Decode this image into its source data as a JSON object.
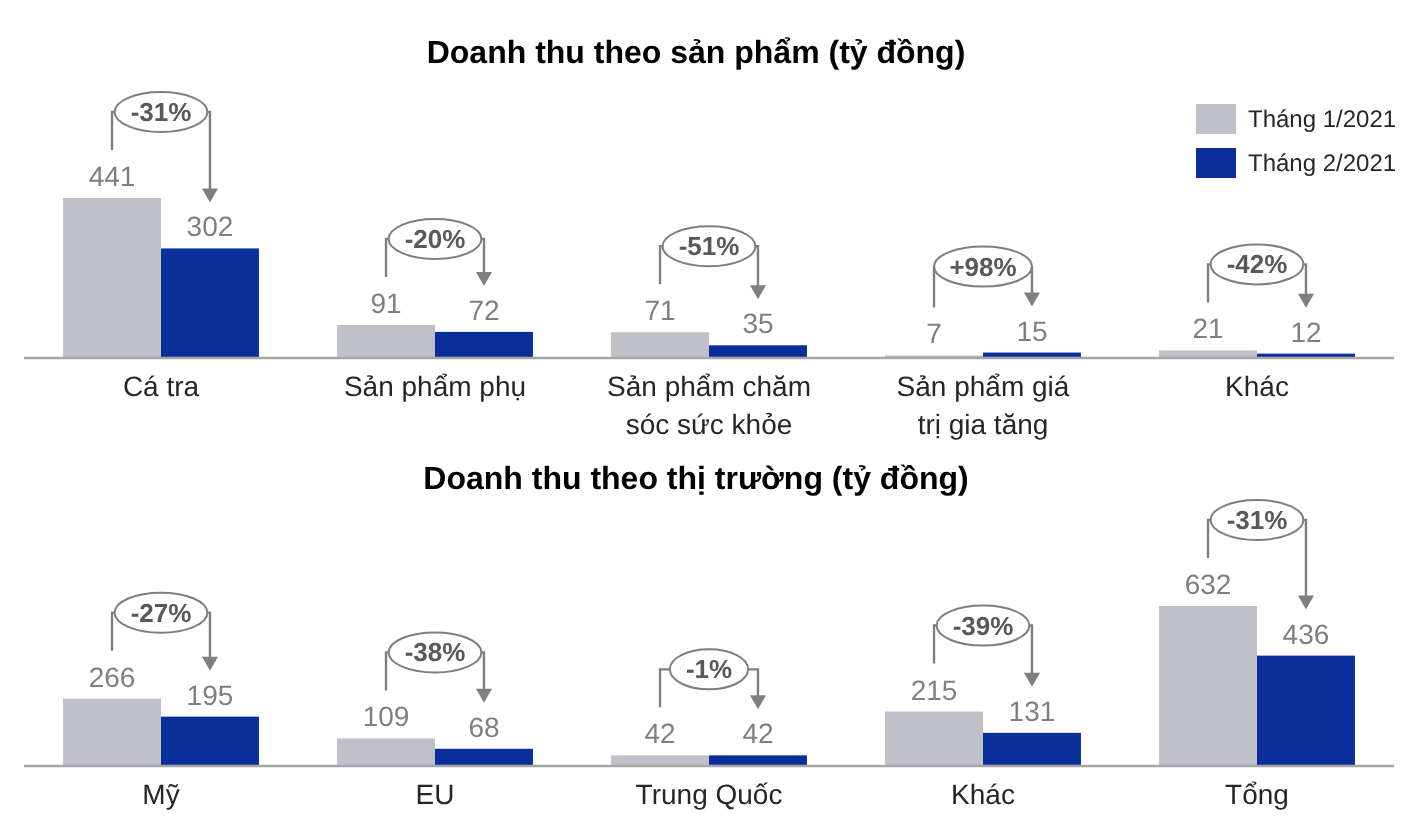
{
  "chart_data": [
    {
      "type": "bar",
      "title": "Doanh thu theo sản phẩm (tỷ đồng)",
      "categories": [
        "Cá tra",
        "Sản phẩm phụ",
        "Sản phẩm chăm sóc sức khỏe",
        "Sản phẩm giá trị gia tăng",
        "Khác"
      ],
      "series": [
        {
          "name": "Tháng 1/2021",
          "color": "#bfc0ca",
          "values": [
            441,
            91,
            71,
            7,
            21
          ]
        },
        {
          "name": "Tháng 2/2021",
          "color": "#0a2f9b",
          "values": [
            302,
            72,
            35,
            15,
            12
          ]
        }
      ],
      "data_labels": true,
      "legend": "top right",
      "tick_labels": "x",
      "annotations": [
        "-31%",
        "-20%",
        "-51%",
        "+98%",
        "-42%"
      ]
    },
    {
      "type": "bar",
      "title": "Doanh thu theo thị trường (tỷ đồng)",
      "categories": [
        "Mỹ",
        "EU",
        "Trung Quốc",
        "Khác",
        "Tổng"
      ],
      "series": [
        {
          "color": "#bfc0ca",
          "values": [
            266,
            109,
            42,
            215,
            632
          ]
        },
        {
          "color": "#0a2f9b",
          "values": [
            195,
            68,
            42,
            131,
            436
          ]
        }
      ],
      "data_labels": true,
      "tick_labels": "x",
      "annotations": [
        "-27%",
        "-38%",
        "-1%",
        "-39%",
        "-31%"
      ]
    }
  ]
}
